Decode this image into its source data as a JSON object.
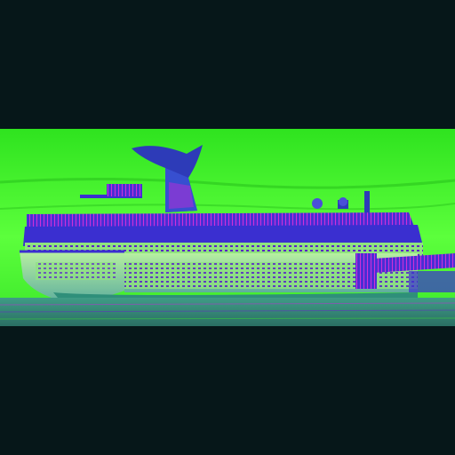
{
  "image": {
    "subject": "cruise-ship",
    "colors": {
      "letterbox": "#061719",
      "sky_green": "#3df227",
      "sky_green_light": "#59ff3a",
      "hull_teal": "#7fc9b8",
      "deck_blue": "#3a2fd0",
      "funnel_blue": "#2d3bb8",
      "water_teal": "#2f8f7a",
      "accent_magenta": "#c02ad6",
      "window_purple": "#6a22c8"
    }
  }
}
